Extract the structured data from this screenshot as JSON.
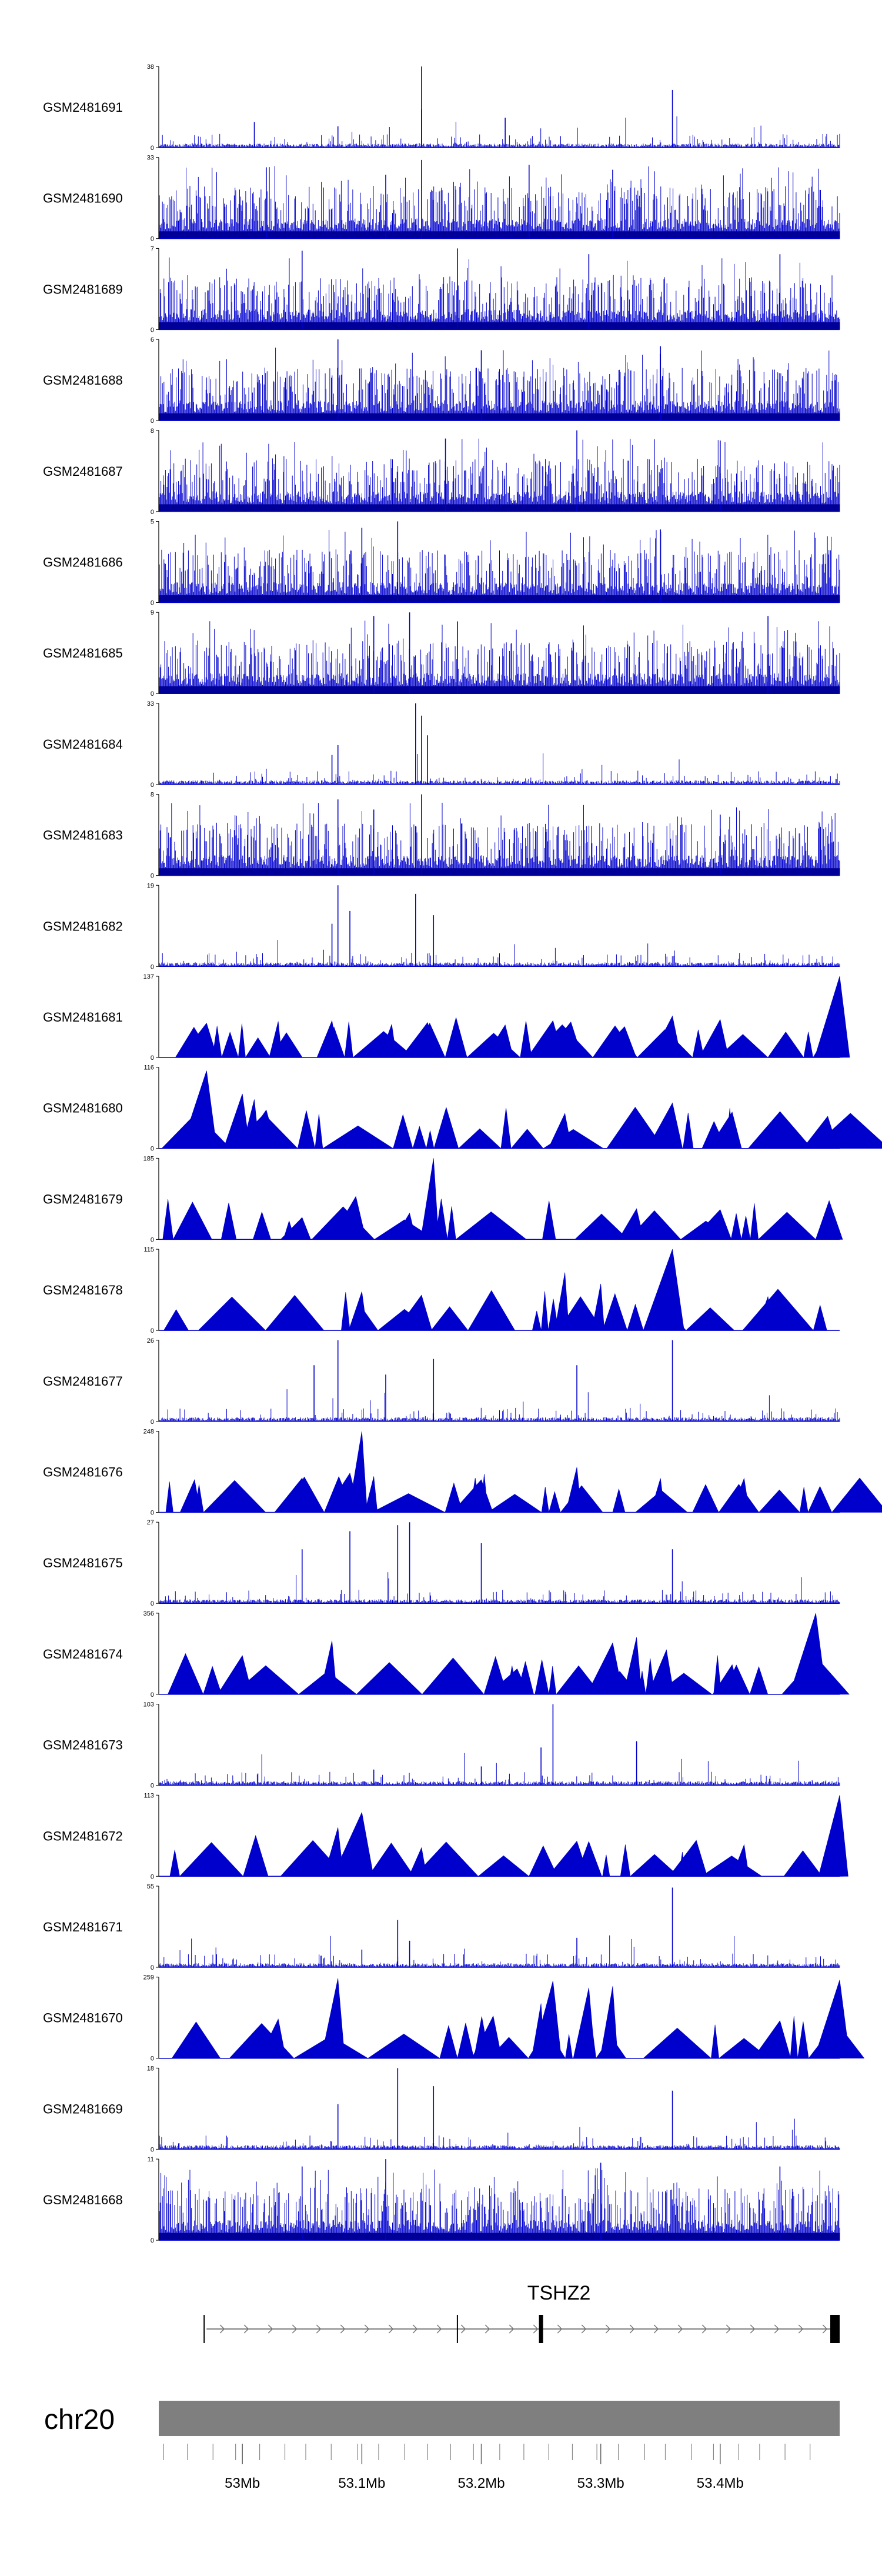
{
  "chart_data": {
    "type": "area",
    "title": "",
    "chromosome": "chr20",
    "xlim_mb": [
      52.93,
      53.5
    ],
    "x_ticks": [
      {
        "value": 53.0,
        "label": "53Mb"
      },
      {
        "value": 53.1,
        "label": "53.1Mb"
      },
      {
        "value": 53.2,
        "label": "53.2Mb"
      },
      {
        "value": 53.3,
        "label": "53.3Mb"
      },
      {
        "value": 53.4,
        "label": "53.4Mb"
      }
    ],
    "color": "#0000cc",
    "series": [
      {
        "name": "GSM2481691",
        "ymax": 38,
        "style": "sparse",
        "peaks": [
          [
            53.15,
            38
          ],
          [
            53.36,
            27
          ],
          [
            53.15,
            18
          ],
          [
            53.01,
            12
          ],
          [
            53.22,
            14
          ],
          [
            53.08,
            10
          ]
        ]
      },
      {
        "name": "GSM2481690",
        "ymax": 33,
        "style": "dense",
        "peaks": [
          [
            53.15,
            32
          ],
          [
            53.24,
            30
          ],
          [
            53.31,
            28
          ],
          [
            53.02,
            29
          ],
          [
            53.12,
            26
          ]
        ]
      },
      {
        "name": "GSM2481689",
        "ymax": 7,
        "style": "dense",
        "peaks": [
          [
            53.18,
            7
          ],
          [
            53.29,
            6.5
          ],
          [
            53.05,
            6.8
          ],
          [
            53.45,
            6.5
          ]
        ]
      },
      {
        "name": "GSM2481688",
        "ymax": 6,
        "style": "dense",
        "peaks": [
          [
            53.08,
            6
          ],
          [
            53.35,
            5.5
          ],
          [
            53.2,
            5.2
          ]
        ]
      },
      {
        "name": "GSM2481687",
        "ymax": 8,
        "style": "dense",
        "peaks": [
          [
            53.28,
            8
          ],
          [
            53.17,
            7.2
          ],
          [
            53.4,
            7
          ]
        ]
      },
      {
        "name": "GSM2481686",
        "ymax": 5,
        "style": "dense",
        "peaks": [
          [
            53.13,
            5
          ],
          [
            53.1,
            4.6
          ],
          [
            53.35,
            4.5
          ]
        ]
      },
      {
        "name": "GSM2481685",
        "ymax": 9,
        "style": "dense",
        "peaks": [
          [
            53.14,
            9
          ],
          [
            53.11,
            8.6
          ],
          [
            53.18,
            8
          ],
          [
            53.44,
            8.6
          ]
        ]
      },
      {
        "name": "GSM2481684",
        "ymax": 33,
        "style": "sparse",
        "peaks": [
          [
            53.145,
            33
          ],
          [
            53.15,
            28
          ],
          [
            53.08,
            16
          ],
          [
            53.075,
            12
          ],
          [
            53.155,
            20
          ]
        ]
      },
      {
        "name": "GSM2481683",
        "ymax": 8,
        "style": "dense",
        "peaks": [
          [
            53.15,
            8
          ],
          [
            53.08,
            7.5
          ],
          [
            53.11,
            6.5
          ],
          [
            53.4,
            6
          ]
        ]
      },
      {
        "name": "GSM2481682",
        "ymax": 19,
        "style": "sparse",
        "peaks": [
          [
            53.08,
            19
          ],
          [
            53.145,
            17
          ],
          [
            53.16,
            12
          ],
          [
            53.09,
            13
          ],
          [
            53.075,
            10
          ]
        ]
      },
      {
        "name": "GSM2481681",
        "ymax": 137,
        "style": "triangles",
        "peaks": [
          [
            53.5,
            137
          ],
          [
            53.03,
            61
          ],
          [
            53.075,
            62
          ],
          [
            53.26,
            62
          ],
          [
            53.275,
            60
          ],
          [
            53.4,
            64
          ],
          [
            53.36,
            70
          ],
          [
            52.97,
            58
          ],
          [
            53.155,
            59
          ],
          [
            53.22,
            55
          ],
          [
            53.32,
            52
          ],
          [
            53.125,
            56
          ]
        ]
      },
      {
        "name": "GSM2481680",
        "ymax": 116,
        "style": "triangles",
        "peaks": [
          [
            52.97,
            111
          ],
          [
            53.0,
            78
          ],
          [
            53.36,
            65
          ],
          [
            53.01,
            70
          ],
          [
            53.27,
            50
          ],
          [
            53.02,
            55
          ],
          [
            53.49,
            46
          ],
          [
            53.41,
            52
          ]
        ]
      },
      {
        "name": "GSM2481679",
        "ymax": 185,
        "style": "triangles",
        "peaks": [
          [
            53.16,
            185
          ],
          [
            53.095,
            98
          ],
          [
            53.14,
            60
          ],
          [
            53.33,
            70
          ],
          [
            53.4,
            68
          ],
          [
            53.05,
            50
          ]
        ]
      },
      {
        "name": "GSM2481678",
        "ymax": 115,
        "style": "triangles",
        "peaks": [
          [
            53.36,
            115
          ],
          [
            53.1,
            55
          ],
          [
            53.27,
            82
          ],
          [
            53.3,
            66
          ],
          [
            53.15,
            50
          ],
          [
            53.44,
            48
          ]
        ]
      },
      {
        "name": "GSM2481677",
        "ymax": 26,
        "style": "sparse",
        "peaks": [
          [
            53.08,
            26
          ],
          [
            53.36,
            26
          ],
          [
            53.06,
            18
          ],
          [
            53.16,
            20
          ],
          [
            53.28,
            18
          ],
          [
            53.12,
            15
          ]
        ]
      },
      {
        "name": "GSM2481676",
        "ymax": 248,
        "style": "triangles",
        "peaks": [
          [
            53.1,
            248
          ],
          [
            53.28,
            138
          ],
          [
            53.09,
            120
          ],
          [
            53.11,
            110
          ],
          [
            53.05,
            105
          ],
          [
            53.35,
            104
          ],
          [
            53.42,
            104
          ],
          [
            53.2,
            100
          ],
          [
            52.96,
            100
          ]
        ]
      },
      {
        "name": "GSM2481675",
        "ymax": 27,
        "style": "sparse",
        "peaks": [
          [
            53.14,
            27
          ],
          [
            53.13,
            26
          ],
          [
            53.09,
            24
          ],
          [
            53.05,
            18
          ],
          [
            53.2,
            20
          ],
          [
            53.36,
            18
          ]
        ]
      },
      {
        "name": "GSM2481674",
        "ymax": 356,
        "style": "triangles",
        "peaks": [
          [
            53.48,
            356
          ],
          [
            53.075,
            235
          ],
          [
            53.31,
            226
          ],
          [
            53.33,
            250
          ],
          [
            53.0,
            170
          ],
          [
            53.355,
            195
          ],
          [
            53.41,
            130
          ],
          [
            53.23,
            112
          ]
        ]
      },
      {
        "name": "GSM2481673",
        "ymax": 103,
        "style": "sparse",
        "peaks": [
          [
            53.26,
            103
          ],
          [
            53.33,
            56
          ],
          [
            53.25,
            48
          ],
          [
            53.2,
            24
          ],
          [
            53.11,
            20
          ]
        ]
      },
      {
        "name": "GSM2481672",
        "ymax": 113,
        "style": "triangles",
        "peaks": [
          [
            53.5,
            113
          ],
          [
            53.1,
            89
          ],
          [
            53.08,
            68
          ],
          [
            53.38,
            50
          ],
          [
            53.28,
            49
          ],
          [
            53.42,
            44
          ],
          [
            53.15,
            40
          ]
        ]
      },
      {
        "name": "GSM2481671",
        "ymax": 55,
        "style": "sparse",
        "peaks": [
          [
            53.36,
            54
          ],
          [
            53.13,
            32
          ],
          [
            53.14,
            18
          ],
          [
            53.28,
            20
          ],
          [
            53.1,
            12
          ]
        ]
      },
      {
        "name": "GSM2481670",
        "ymax": 259,
        "style": "triangles",
        "peaks": [
          [
            53.08,
            255
          ],
          [
            53.5,
            250
          ],
          [
            53.26,
            247
          ],
          [
            53.29,
            225
          ],
          [
            53.31,
            230
          ],
          [
            53.25,
            175
          ],
          [
            53.03,
            125
          ],
          [
            53.21,
            135
          ],
          [
            53.45,
            120
          ]
        ]
      },
      {
        "name": "GSM2481669",
        "ymax": 18,
        "style": "sparse",
        "peaks": [
          [
            53.13,
            18
          ],
          [
            53.16,
            14
          ],
          [
            53.36,
            13
          ],
          [
            53.08,
            10
          ]
        ]
      },
      {
        "name": "GSM2481668",
        "ymax": 11,
        "style": "dense",
        "peaks": [
          [
            53.12,
            11
          ],
          [
            53.05,
            10
          ],
          [
            53.3,
            10.5
          ],
          [
            53.45,
            10
          ]
        ]
      }
    ],
    "gene_track": {
      "gene": "TSHZ2",
      "strand": "+",
      "start_mb": 52.97,
      "end_mb": 53.5,
      "exons_mb": [
        52.968,
        53.18,
        53.25
      ]
    }
  }
}
